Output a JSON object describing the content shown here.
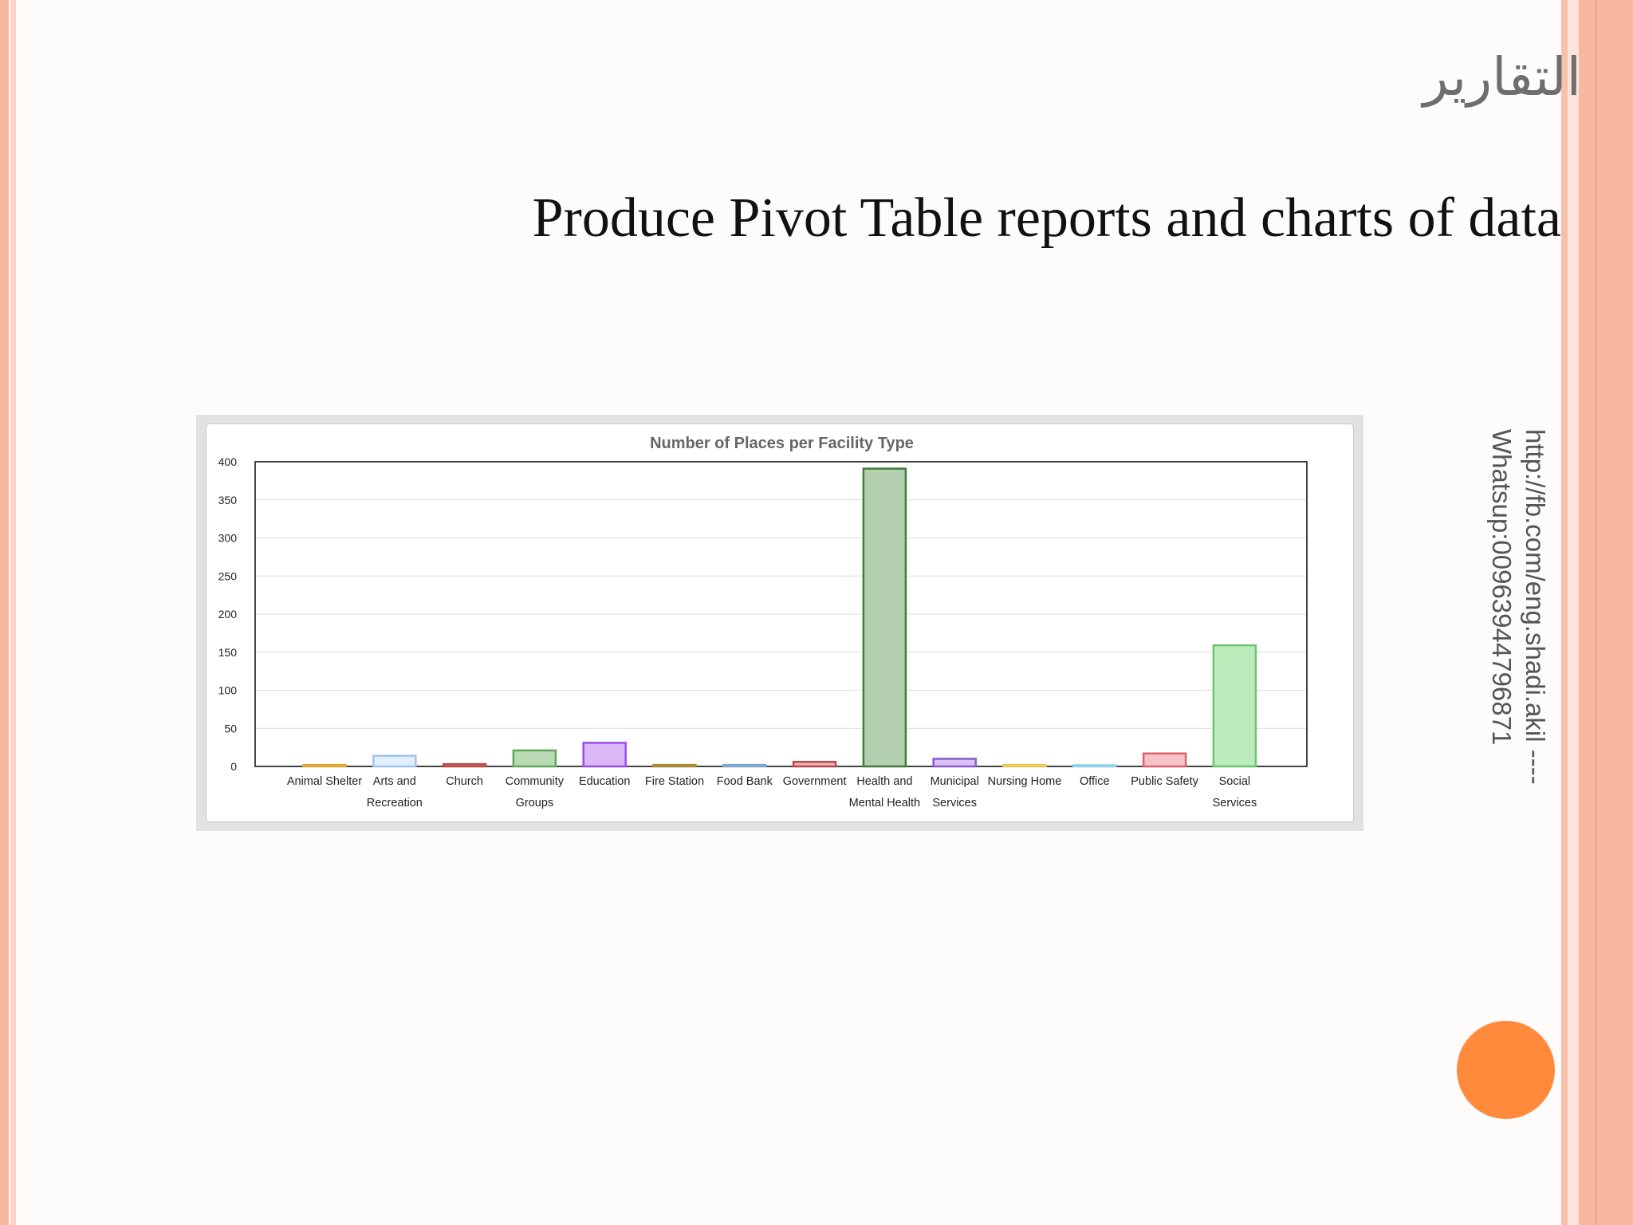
{
  "slide": {
    "arabic_title": "التقارير",
    "subtitle": "Produce Pivot Table reports and charts of data",
    "side_text_line1": "http://fb.com/eng.shadi.akil ----",
    "side_text_line2": "Whatsup:00963944796871"
  },
  "colors": {
    "accent_dot": "#ff8a3c",
    "stripe": "#f7b89f"
  },
  "chart_data": {
    "type": "bar",
    "title": "Number of Places per Facility Type",
    "xlabel": "",
    "ylabel": "",
    "ylim": [
      0,
      400
    ],
    "yticks": [
      0,
      50,
      100,
      150,
      200,
      250,
      300,
      350,
      400
    ],
    "grid": true,
    "categories": [
      [
        "Animal Shelter"
      ],
      [
        "Arts and",
        "Recreation"
      ],
      [
        "Church"
      ],
      [
        "Community",
        "Groups"
      ],
      [
        "Education"
      ],
      [
        "Fire Station"
      ],
      [
        "Food Bank"
      ],
      [
        "Government"
      ],
      [
        "Health and",
        "Mental Health"
      ],
      [
        "Municipal",
        "Services"
      ],
      [
        "Nursing Home"
      ],
      [
        "Office"
      ],
      [
        "Public Safety"
      ],
      [
        "Social",
        "Services"
      ]
    ],
    "values": [
      2,
      14,
      3,
      21,
      31,
      2,
      2,
      6,
      391,
      10,
      2,
      1,
      17,
      159
    ],
    "bar_fill": [
      "#f5d89a",
      "#e3effd",
      "#e8a0a0",
      "#b9dab4",
      "#dbb8f8",
      "#e2cf9a",
      "#cfe2f2",
      "#f1b3b3",
      "#b4cfb0",
      "#dcc2f4",
      "#faeab0",
      "#d9f0f8",
      "#f7c2c6",
      "#bcecbc"
    ],
    "bar_stroke": [
      "#d9a93a",
      "#9fc4ee",
      "#b84a4a",
      "#5fa75a",
      "#9b4ee6",
      "#a78b33",
      "#7fa6cc",
      "#b54a4a",
      "#3f7d3a",
      "#8a5bc9",
      "#e9c95b",
      "#8fd0ea",
      "#d9626b",
      "#6cc56c"
    ]
  }
}
